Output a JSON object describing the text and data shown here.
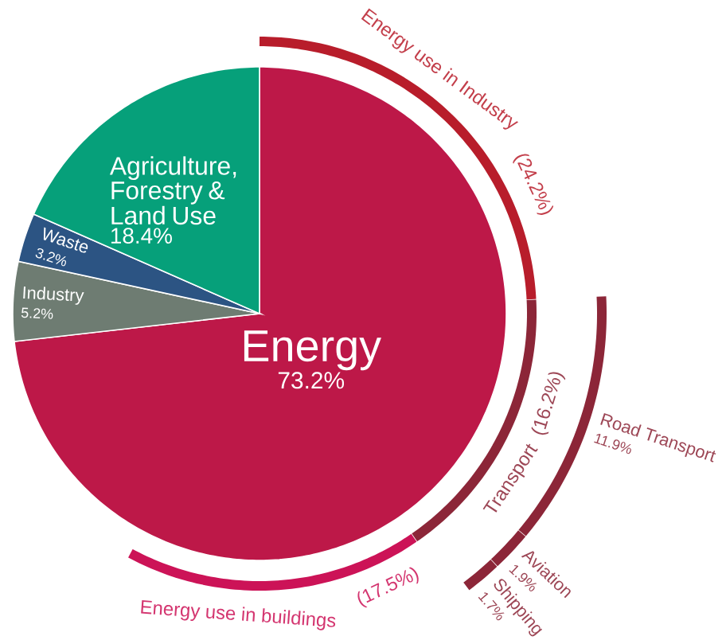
{
  "chart_data": [
    {
      "type": "pie",
      "categories": [
        "Energy",
        "Industry",
        "Waste",
        "Agriculture, Forestry & Land Use"
      ],
      "values": [
        73.2,
        5.2,
        3.2,
        18.4
      ],
      "value_labels": [
        "73.2%",
        "5.2%",
        "3.2%",
        "18.4%"
      ],
      "colors": [
        "#bd1848",
        "#6e7c72",
        "#2c5483",
        "#06a07a"
      ]
    },
    {
      "type": "other",
      "categories": [
        "Energy use in Industry",
        "Transport",
        "Energy use in buildings"
      ],
      "values": [
        24.2,
        16.2,
        17.5
      ],
      "value_labels": [
        "(24.2%)",
        "(16.2%)",
        "(17.5%)"
      ],
      "colors": [
        "#b81d2b",
        "#8c2638",
        "#cc1357"
      ]
    },
    {
      "type": "other",
      "categories": [
        "Road Transport",
        "Aviation",
        "Shipping"
      ],
      "values": [
        11.9,
        1.9,
        1.7
      ],
      "value_labels": [
        "11.9%",
        "1.9%",
        "1.7%"
      ],
      "colors": [
        "#8c2638",
        "#8c2638",
        "#8c2638"
      ]
    }
  ]
}
